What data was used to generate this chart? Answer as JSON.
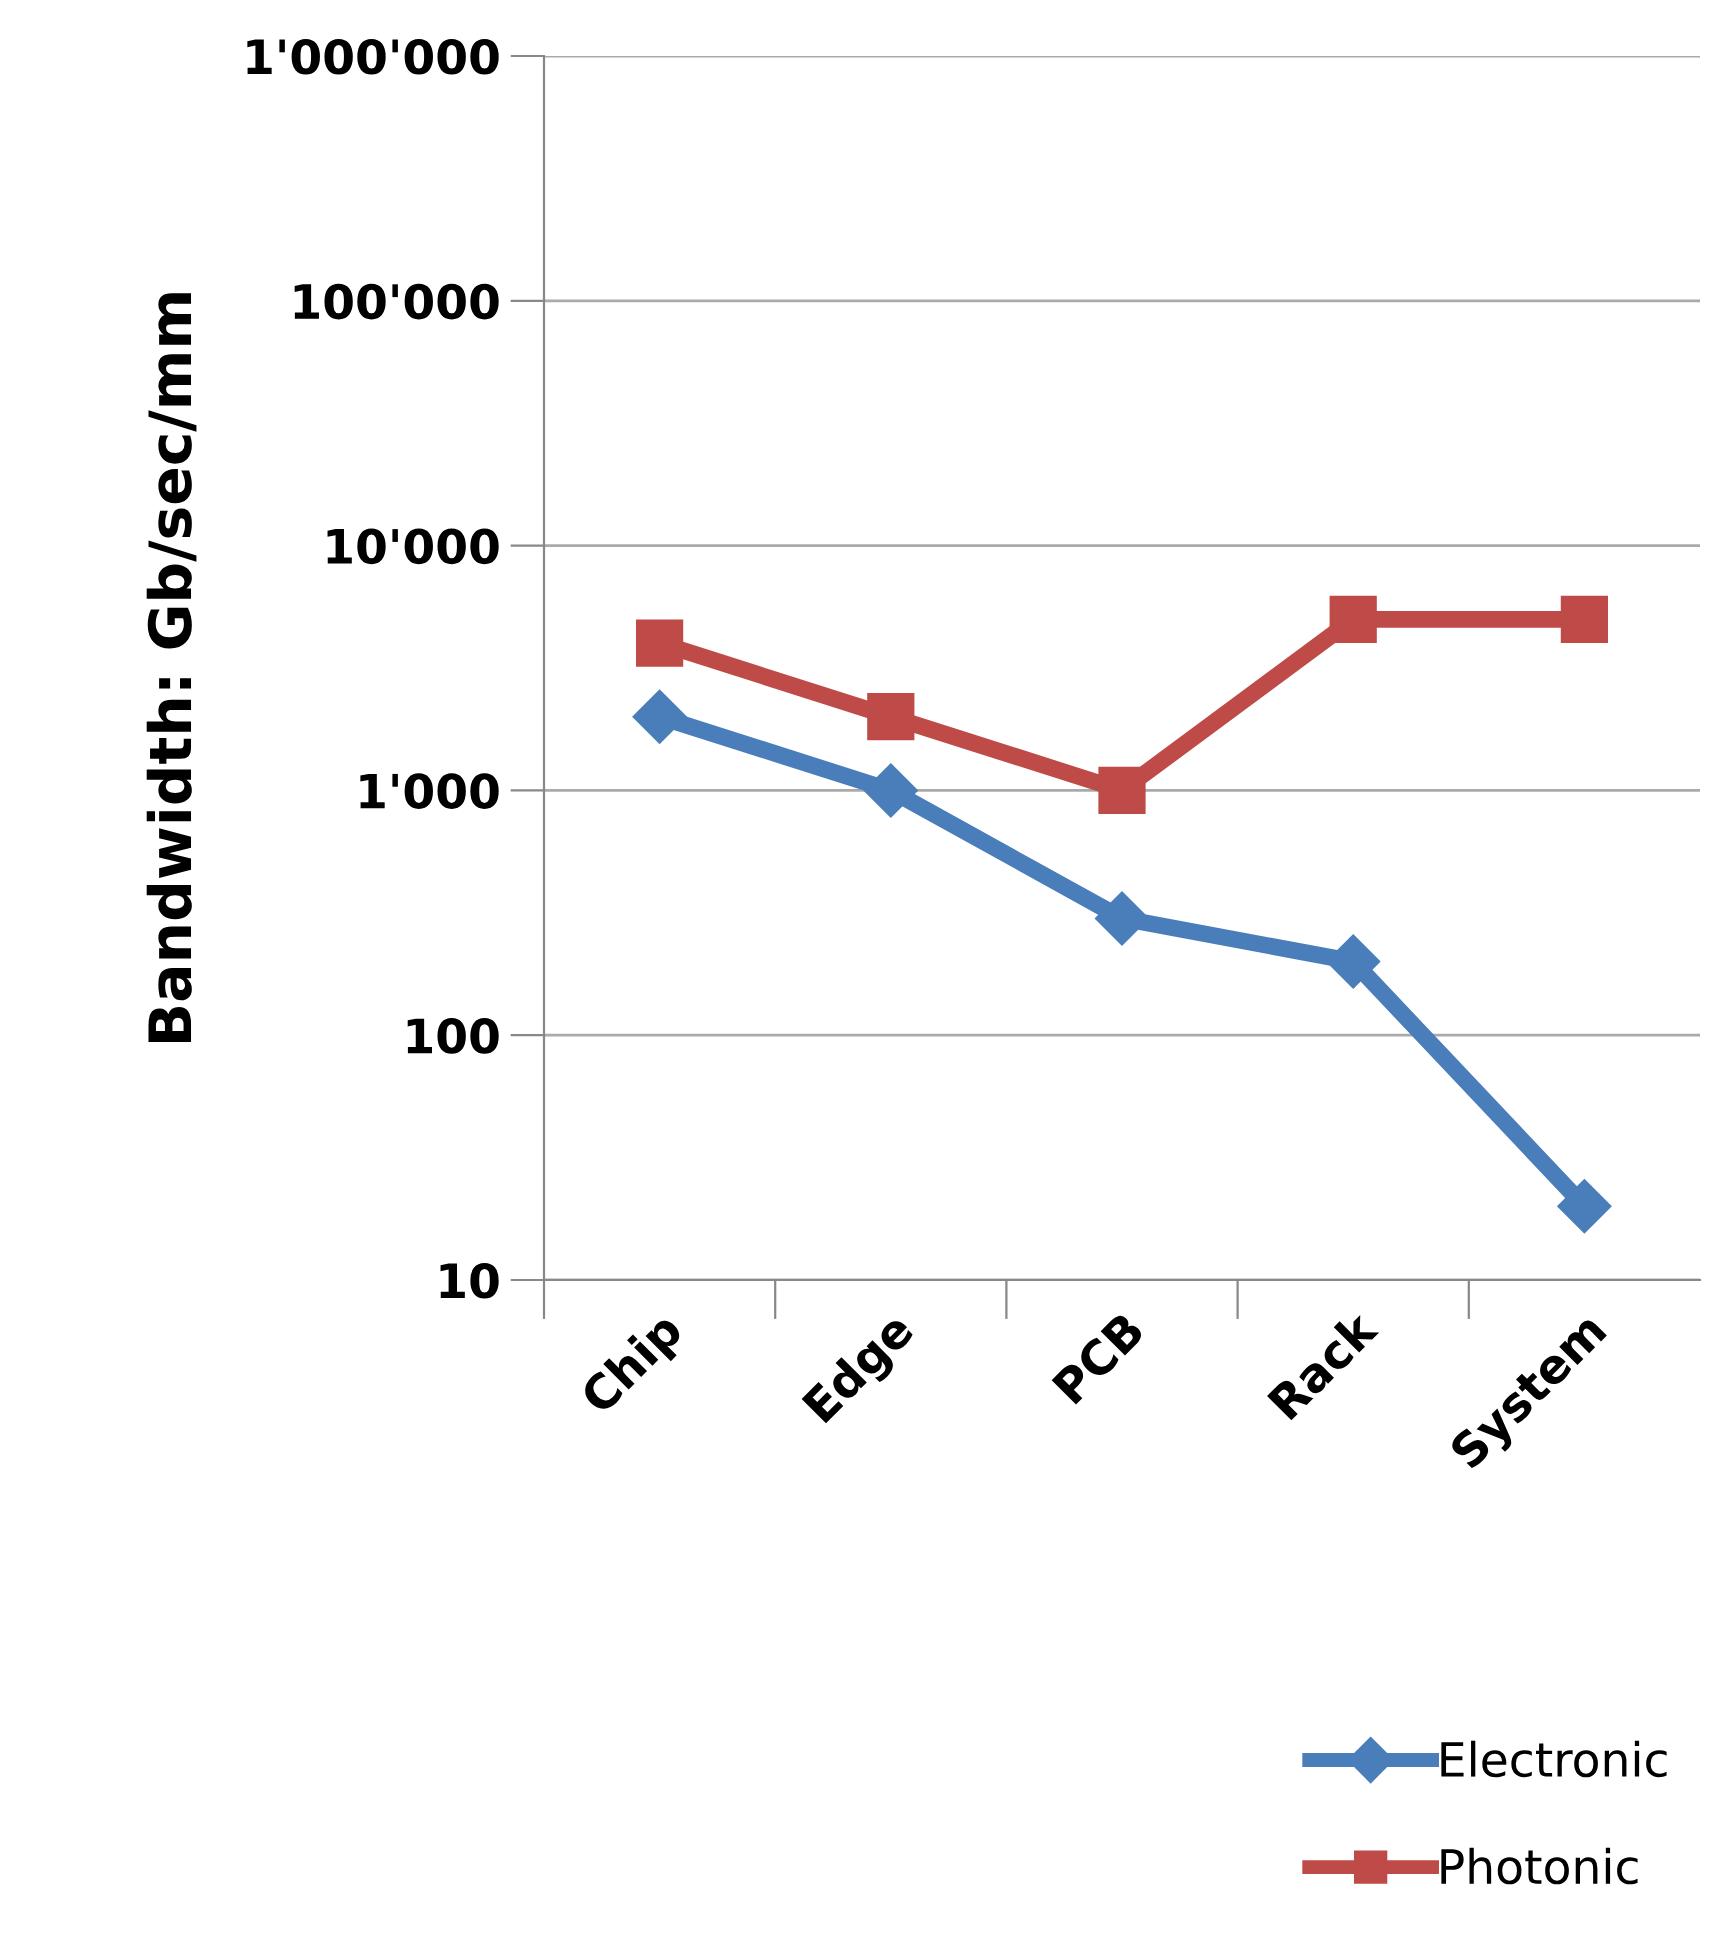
{
  "chart_data": {
    "type": "line",
    "ylabel": "Bandwidth: Gb/sec/mm",
    "categories": [
      "Chip",
      "Edge",
      "PCB",
      "Rack",
      "System"
    ],
    "series": [
      {
        "name": "Electronic",
        "color": "#4a7ebb",
        "marker": "diamond",
        "values": [
          2000,
          1000,
          300,
          200,
          20
        ]
      },
      {
        "name": "Photonic",
        "color": "#be4b48",
        "marker": "square",
        "values": [
          4000,
          2000,
          1000,
          5000,
          5000
        ]
      }
    ],
    "log": true,
    "ylim": [
      10,
      1000000
    ],
    "yticks": [
      {
        "value": 10,
        "label": "10"
      },
      {
        "value": 100,
        "label": "100"
      },
      {
        "value": 1000,
        "label": "1'000"
      },
      {
        "value": 10000,
        "label": "10'000"
      },
      {
        "value": 100000,
        "label": "100'000"
      },
      {
        "value": 1000000,
        "label": "1'000'000"
      }
    ],
    "grid": "y",
    "legend": "bottom right",
    "line_style": "solid"
  }
}
